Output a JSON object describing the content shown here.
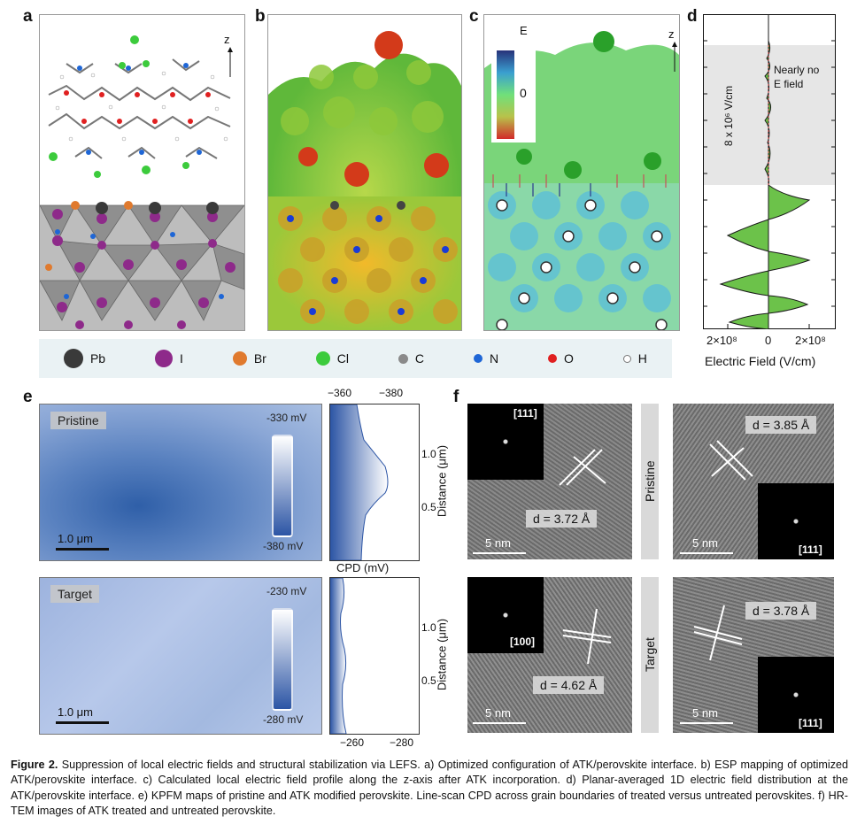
{
  "panels": {
    "a": "a",
    "b": "b",
    "c": "c",
    "d": "d",
    "e": "e",
    "f": "f"
  },
  "panel_a": {
    "axis_label": "z"
  },
  "panel_c": {
    "axis_label": "z",
    "scale_label": "E",
    "scale_zero": "0"
  },
  "legend": {
    "items": [
      {
        "label": "Pb",
        "color": "#3a3a3a",
        "size": 22
      },
      {
        "label": "I",
        "color": "#8e2a8a",
        "size": 20
      },
      {
        "label": "Br",
        "color": "#e07a2e",
        "size": 16
      },
      {
        "label": "Cl",
        "color": "#3ccb3c",
        "size": 16
      },
      {
        "label": "C",
        "color": "#8a8a8a",
        "size": 11
      },
      {
        "label": "N",
        "color": "#1e66d6",
        "size": 10
      },
      {
        "label": "O",
        "color": "#e02020",
        "size": 10
      },
      {
        "label": "H",
        "color": "#ffffff",
        "size": 7
      }
    ]
  },
  "panel_d": {
    "annotation": "Nearly no\nE field",
    "magnitude": "8 x 10⁶ V/cm",
    "xticks": [
      "2×10⁸",
      "0",
      "2×10⁸"
    ],
    "xlabel": "Electric Field (V/cm)"
  },
  "panel_e": {
    "pristine": {
      "tag": "Pristine",
      "top": "-330 mV",
      "bottom": "-380 mV",
      "scalebar": "1.0 μm"
    },
    "target": {
      "tag": "Target",
      "top": "-230 mV",
      "bottom": "-280 mV",
      "scalebar": "1.0 μm"
    },
    "profile_top_ticks": [
      "−360",
      "−380"
    ],
    "profile_bottom_ticks": [
      "−260",
      "−280"
    ],
    "profile_xlabel": "CPD (mV)",
    "distance_label": "Distance (μm)",
    "distance_ticks": [
      "1.0",
      "0.5"
    ]
  },
  "panel_f": {
    "row_pristine": "Pristine",
    "row_target": "Target",
    "images": [
      {
        "fft": "[111]",
        "d": "d = 3.72 Å",
        "scale": "5 nm"
      },
      {
        "fft": "[111]",
        "d": "d = 3.85 Å",
        "scale": "5 nm"
      },
      {
        "fft": "[100]",
        "d": "d = 4.62 Å",
        "scale": "5 nm"
      },
      {
        "fft": "[111]",
        "d": "d = 3.78 Å",
        "scale": "5 nm"
      }
    ]
  },
  "caption": {
    "label": "Figure 2.",
    "text": " Suppression of local electric fields and structural stabilization via LEFS. a) Optimized configuration of ATK/perovskite interface. b) ESP mapping of optimized ATK/perovskite interface. c) Calculated local electric field profile along the z-axis after ATK incorporation. d) Planar-averaged 1D electric field distribution at the ATK/perovskite interface. e) KPFM maps of pristine and ATK modified perovskite. Line-scan CPD across grain boundaries of treated versus untreated perovskites. f) HR-TEM images of ATK treated and untreated perovskite."
  }
}
